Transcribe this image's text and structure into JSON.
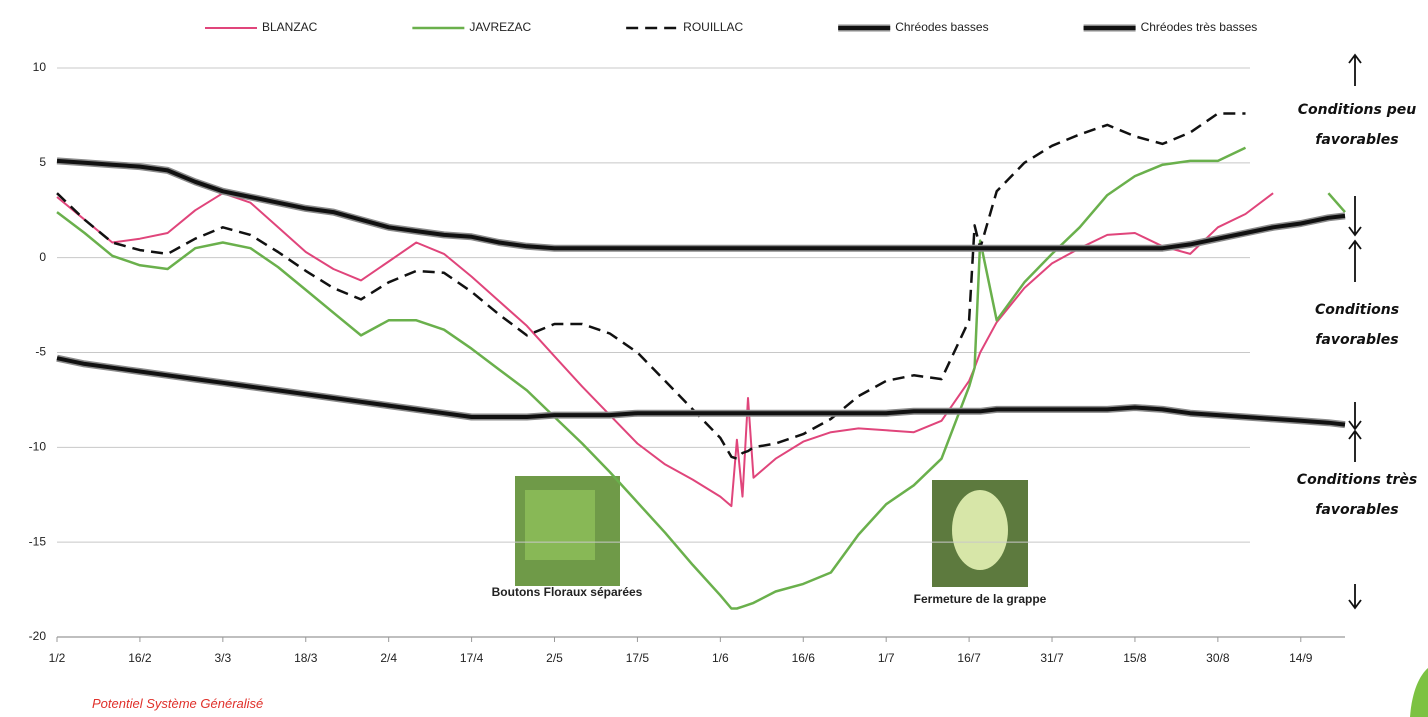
{
  "chart_data": {
    "type": "line",
    "x": [
      "1/2",
      "6/2",
      "11/2",
      "16/2",
      "21/2",
      "26/2",
      "3/3",
      "8/3",
      "13/3",
      "18/3",
      "23/3",
      "28/3",
      "2/4",
      "7/4",
      "12/4",
      "17/4",
      "22/4",
      "27/4",
      "2/5",
      "7/5",
      "12/5",
      "17/5",
      "22/5",
      "27/5",
      "1/6",
      "3/6",
      "4/6",
      "5/6",
      "6/6",
      "7/6",
      "11/6",
      "16/6",
      "21/6",
      "26/6",
      "1/7",
      "6/7",
      "11/7",
      "16/7",
      "17/7",
      "18/7",
      "21/7",
      "26/7",
      "31/7",
      "5/8",
      "10/8",
      "15/8",
      "20/8",
      "25/8",
      "30/8",
      "4/9",
      "9/9",
      "14/9",
      "19/9",
      "22/9"
    ],
    "xlim": [
      "1/2",
      "22/9"
    ],
    "xticks": [
      "1/2",
      "16/2",
      "3/3",
      "18/3",
      "2/4",
      "17/4",
      "2/5",
      "17/5",
      "1/6",
      "16/6",
      "1/7",
      "16/7",
      "31/7",
      "15/8",
      "30/8",
      "14/9"
    ],
    "ylim": [
      -20,
      10
    ],
    "yticks": [
      -20,
      -15,
      -10,
      -5,
      0,
      5,
      10
    ],
    "grid": true,
    "legend": "top",
    "series": [
      {
        "name": "BLANZAC",
        "color": "#e0457b",
        "width": 2,
        "style": "solid",
        "values": [
          3.2,
          2.0,
          0.8,
          1.0,
          1.3,
          2.5,
          3.4,
          2.9,
          1.6,
          0.3,
          -0.6,
          -1.2,
          -0.2,
          0.8,
          0.2,
          -1.0,
          -2.3,
          -3.6,
          -5.2,
          -6.8,
          -8.3,
          -9.8,
          -10.9,
          -11.7,
          -12.6,
          -13.1,
          -9.6,
          -12.6,
          -7.4,
          -11.6,
          -10.6,
          -9.7,
          -9.2,
          -9.0,
          -9.1,
          -9.2,
          -8.6,
          -6.5,
          -5.8,
          -5.0,
          -3.4,
          -1.6,
          -0.3,
          0.5,
          1.2,
          1.3,
          0.6,
          0.2,
          1.6,
          2.3,
          3.4,
          null,
          null,
          null
        ]
      },
      {
        "name": "JAVREZAC",
        "color": "#6ab04c",
        "width": 2.5,
        "style": "solid",
        "values": [
          2.4,
          1.3,
          0.1,
          -0.4,
          -0.6,
          0.5,
          0.8,
          0.5,
          -0.5,
          -1.7,
          -2.9,
          -4.1,
          -3.3,
          -3.3,
          -3.8,
          -4.8,
          -5.9,
          -7.0,
          -8.4,
          -9.8,
          -11.3,
          -12.9,
          -14.5,
          -16.2,
          -17.8,
          -18.5,
          -18.5,
          -18.4,
          -18.3,
          -18.2,
          -17.6,
          -17.2,
          -16.6,
          -14.6,
          -13.0,
          -12.0,
          -10.6,
          -6.8,
          -5.8,
          0.9,
          -3.3,
          -1.3,
          0.2,
          1.6,
          3.3,
          4.3,
          4.9,
          5.1,
          5.1,
          5.8,
          null,
          null,
          3.4,
          2.4
        ]
      },
      {
        "name": "ROUILLAC",
        "color": "#111111",
        "width": 2.5,
        "style": "dashed",
        "values": [
          3.4,
          2.0,
          0.8,
          0.4,
          0.2,
          1.0,
          1.6,
          1.2,
          0.3,
          -0.7,
          -1.6,
          -2.2,
          -1.3,
          -0.7,
          -0.8,
          -1.8,
          -3.0,
          -4.1,
          -3.5,
          -3.5,
          -4.0,
          -5.0,
          -6.5,
          -8.0,
          -9.5,
          -10.5,
          -10.6,
          -10.3,
          -10.2,
          -10.0,
          -9.8,
          -9.3,
          -8.5,
          -7.3,
          -6.5,
          -6.2,
          -6.4,
          -3.3,
          1.7,
          0.5,
          3.5,
          5.0,
          5.9,
          6.5,
          7.0,
          6.4,
          6.0,
          6.6,
          7.6,
          7.6,
          null,
          null,
          null,
          null
        ]
      },
      {
        "name": "Chréodes basses",
        "color": "#111111",
        "width": 4,
        "style": "thick",
        "values": [
          5.1,
          5.0,
          4.9,
          4.8,
          4.6,
          4.0,
          3.5,
          3.2,
          2.9,
          2.6,
          2.4,
          2.0,
          1.6,
          1.4,
          1.2,
          1.1,
          0.8,
          0.6,
          0.5,
          0.5,
          0.5,
          0.5,
          0.5,
          0.5,
          0.5,
          0.5,
          0.5,
          0.5,
          0.5,
          0.5,
          0.5,
          0.5,
          0.5,
          0.5,
          0.5,
          0.5,
          0.5,
          0.5,
          0.5,
          0.5,
          0.5,
          0.5,
          0.5,
          0.5,
          0.5,
          0.5,
          0.5,
          0.7,
          1.0,
          1.3,
          1.6,
          1.8,
          2.1,
          2.2
        ]
      },
      {
        "name": "Chréodes très basses",
        "color": "#111111",
        "width": 4,
        "style": "thick",
        "values": [
          -5.3,
          -5.6,
          -5.8,
          -6.0,
          -6.2,
          -6.4,
          -6.6,
          -6.8,
          -7.0,
          -7.2,
          -7.4,
          -7.6,
          -7.8,
          -8.0,
          -8.2,
          -8.4,
          -8.4,
          -8.4,
          -8.3,
          -8.3,
          -8.3,
          -8.2,
          -8.2,
          -8.2,
          -8.2,
          -8.2,
          -8.2,
          -8.2,
          -8.2,
          -8.2,
          -8.2,
          -8.2,
          -8.2,
          -8.2,
          -8.2,
          -8.1,
          -8.1,
          -8.1,
          -8.1,
          -8.1,
          -8.0,
          -8.0,
          -8.0,
          -8.0,
          -8.0,
          -7.9,
          -8.0,
          -8.2,
          -8.3,
          -8.4,
          -8.5,
          -8.6,
          -8.7,
          -8.8
        ]
      }
    ],
    "annotations": [
      "Conditions peu favorables",
      "Conditions favorables",
      "Conditions très favorables"
    ],
    "photo_labels": [
      "Boutons Floraux séparées",
      "Fermeture de la grappe"
    ],
    "source": "Potentiel Système Généralisé"
  }
}
